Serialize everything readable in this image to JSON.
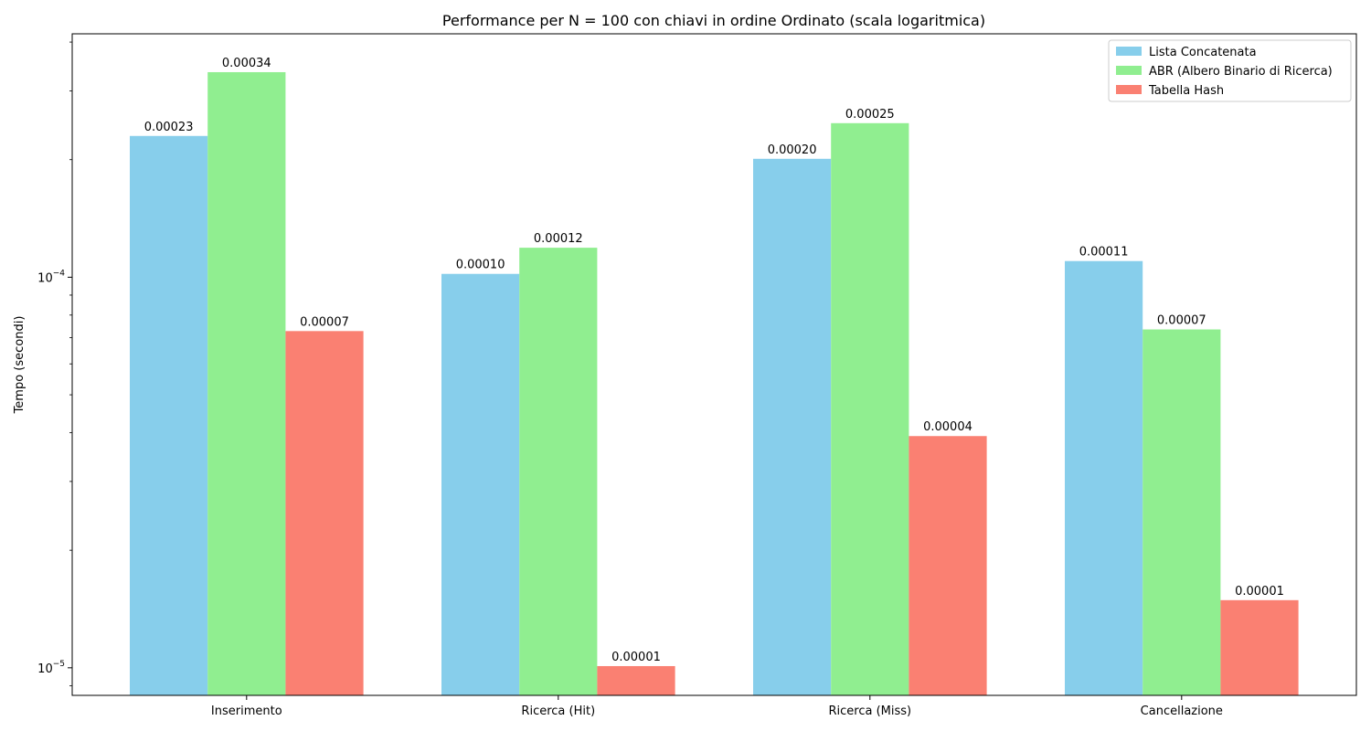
{
  "chart_data": {
    "type": "bar",
    "title": "Performance per N = 100 con chiavi in ordine Ordinato (scala logaritmica)",
    "xlabel": "",
    "ylabel": "Tempo (secondi)",
    "yscale": "log",
    "ylim": [
      8.5e-06,
      0.00042
    ],
    "yticks": [
      {
        "value": 0.0001,
        "label": "10−4"
      },
      {
        "value": 1e-05,
        "label": "10−5"
      }
    ],
    "grid": false,
    "legend_position": "top-right",
    "categories": [
      "Inserimento",
      "Ricerca (Hit)",
      "Ricerca (Miss)",
      "Cancellazione"
    ],
    "series": [
      {
        "name": "Lista Concatenata",
        "color": "#87CEEB",
        "values": [
          0.00023,
          0.000102,
          0.000201,
          0.00011
        ],
        "labels": [
          "0.00023",
          "0.00010",
          "0.00020",
          "0.00011"
        ]
      },
      {
        "name": "ABR (Albero Binario di Ricerca)",
        "color": "#90EE90",
        "values": [
          0.000335,
          0.000119,
          0.000248,
          7.35e-05
        ],
        "labels": [
          "0.00034",
          "0.00012",
          "0.00025",
          "0.00007"
        ]
      },
      {
        "name": "Tabella Hash",
        "color": "#FA8072",
        "values": [
          7.28e-05,
          1.01e-05,
          3.92e-05,
          1.49e-05
        ],
        "labels": [
          "0.00007",
          "0.00001",
          "0.00004",
          "0.00001"
        ]
      }
    ]
  }
}
